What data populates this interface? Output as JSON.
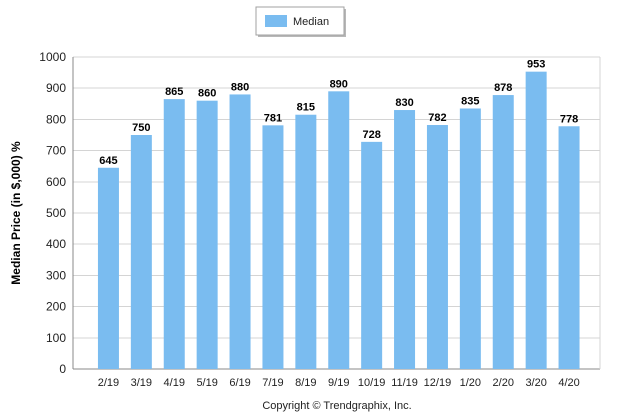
{
  "chart_data": {
    "type": "bar",
    "title": "",
    "xlabel": "",
    "ylabel": "Median Price (in $,000) %",
    "categories": [
      "2/19",
      "3/19",
      "4/19",
      "5/19",
      "6/19",
      "7/19",
      "8/19",
      "9/19",
      "10/19",
      "11/19",
      "12/19",
      "1/20",
      "2/20",
      "3/20",
      "4/20"
    ],
    "series": [
      {
        "name": "Median",
        "values": [
          645,
          750,
          865,
          860,
          880,
          781,
          815,
          890,
          728,
          830,
          782,
          835,
          878,
          953,
          778
        ],
        "color": "#7abcf0"
      }
    ],
    "data_labels": [
      "645",
      "750",
      "865",
      "860",
      "880",
      "781",
      "815",
      "890",
      "728",
      "830",
      "782",
      "835",
      "878",
      "953",
      "778"
    ],
    "y_ticks": [
      "0",
      "100",
      "200",
      "300",
      "400",
      "500",
      "600",
      "700",
      "800",
      "900",
      "1000"
    ],
    "ylim": [
      0,
      1000
    ],
    "grid": true,
    "legend_position": "top-center",
    "copyright": "Copyright © Trendgraphix, Inc."
  },
  "colors": {
    "bar": "#7abcf0",
    "grid": "#d4d4d4",
    "axis": "#888888"
  }
}
